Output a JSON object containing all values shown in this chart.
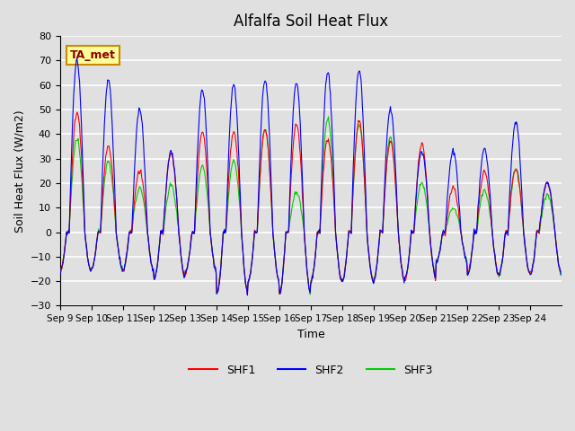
{
  "title": "Alfalfa Soil Heat Flux",
  "ylabel": "Soil Heat Flux (W/m2)",
  "xlabel": "Time",
  "ylim": [
    -30,
    80
  ],
  "yticks": [
    -30,
    -20,
    -10,
    0,
    10,
    20,
    30,
    40,
    50,
    60,
    70,
    80
  ],
  "annotation": "TA_met",
  "legend_labels": [
    "SHF1",
    "SHF2",
    "SHF3"
  ],
  "legend_colors": [
    "#ff0000",
    "#0000ff",
    "#00cc00"
  ],
  "x_tick_labels": [
    "Sep 9",
    "Sep 10",
    "Sep 11",
    "Sep 12",
    "Sep 13",
    "Sep 14",
    "Sep 15",
    "Sep 16",
    "Sep 17",
    "Sep 18",
    "Sep 19",
    "Sep 20",
    "Sep 21",
    "Sep 22",
    "Sep 23",
    "Sep 24"
  ],
  "background_color": "#e0e0e0",
  "plot_bg_color": "#e0e0e0",
  "grid_color": "#ffffff",
  "n_days": 16,
  "pts_per_day": 48,
  "day_peaks_shf1": [
    49,
    35,
    25,
    32,
    41,
    41,
    42,
    44,
    38,
    45,
    37,
    36,
    18,
    25,
    26,
    20
  ],
  "day_peaks_shf2": [
    70,
    62,
    50,
    33,
    58,
    60,
    62,
    61,
    65,
    66,
    50,
    33,
    33,
    34,
    45,
    20
  ],
  "day_peaks_shf3": [
    38,
    29,
    18,
    19,
    27,
    29,
    42,
    16,
    46,
    44,
    39,
    20,
    10,
    17,
    26,
    15
  ],
  "night_troughs": [
    -16,
    -15,
    -16,
    -19,
    -16,
    -25,
    -20,
    -25,
    -20,
    -20,
    -20,
    -19,
    -12,
    -17,
    -17,
    -17
  ]
}
